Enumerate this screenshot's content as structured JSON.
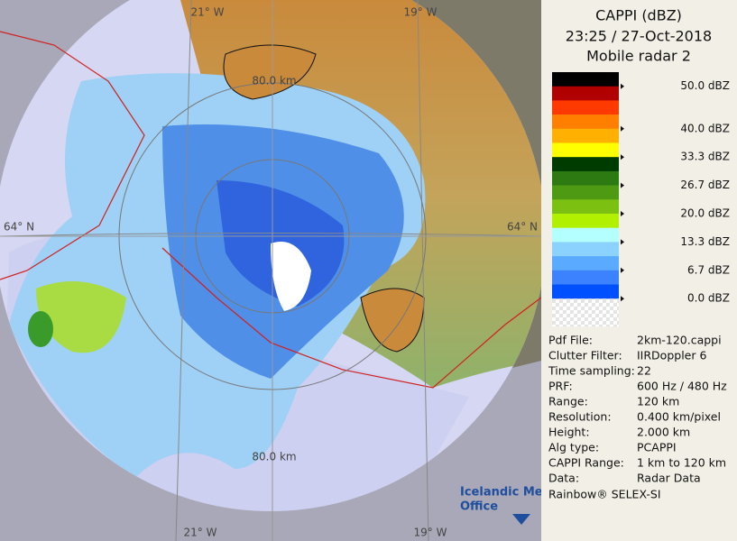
{
  "map": {
    "lon_labels_top": [
      "21° W",
      "19° W"
    ],
    "lon_labels_bottom": [
      "21° W",
      "19° W"
    ],
    "lat_labels": [
      "64° N",
      "64° N"
    ],
    "range_labels": [
      "80.0 km",
      "80.0 km"
    ]
  },
  "legend": {
    "title": "CAPPI (dBZ)",
    "time": "23:25 / 27-Oct-2018",
    "radar": "Mobile radar 2",
    "scale_labels": [
      "50.0 dBZ",
      "40.0 dBZ",
      "33.3 dBZ",
      "26.7 dBZ",
      "20.0 dBZ",
      "13.3 dBZ",
      "6.7 dBZ",
      "0.0 dBZ"
    ]
  },
  "info": {
    "rows": [
      [
        "Pdf File:",
        "2km-120.cappi"
      ],
      [
        "Clutter Filter:",
        "IIRDoppler 6"
      ],
      [
        "Time sampling:",
        "22"
      ],
      [
        "PRF:",
        "600 Hz / 480 Hz"
      ],
      [
        "Range:",
        "120 km"
      ],
      [
        "Resolution:",
        "0.400 km/pixel"
      ],
      [
        "Height:",
        "2.000 km"
      ],
      [
        "Alg type:",
        "PCAPPI"
      ],
      [
        "CAPPI Range:",
        "1 km to 120 km"
      ],
      [
        "Data:",
        "Radar Data"
      ]
    ]
  },
  "logo": {
    "line1": "Icelandic Met",
    "line2": "Office"
  },
  "footer": "Rainbow® SELEX-SI"
}
